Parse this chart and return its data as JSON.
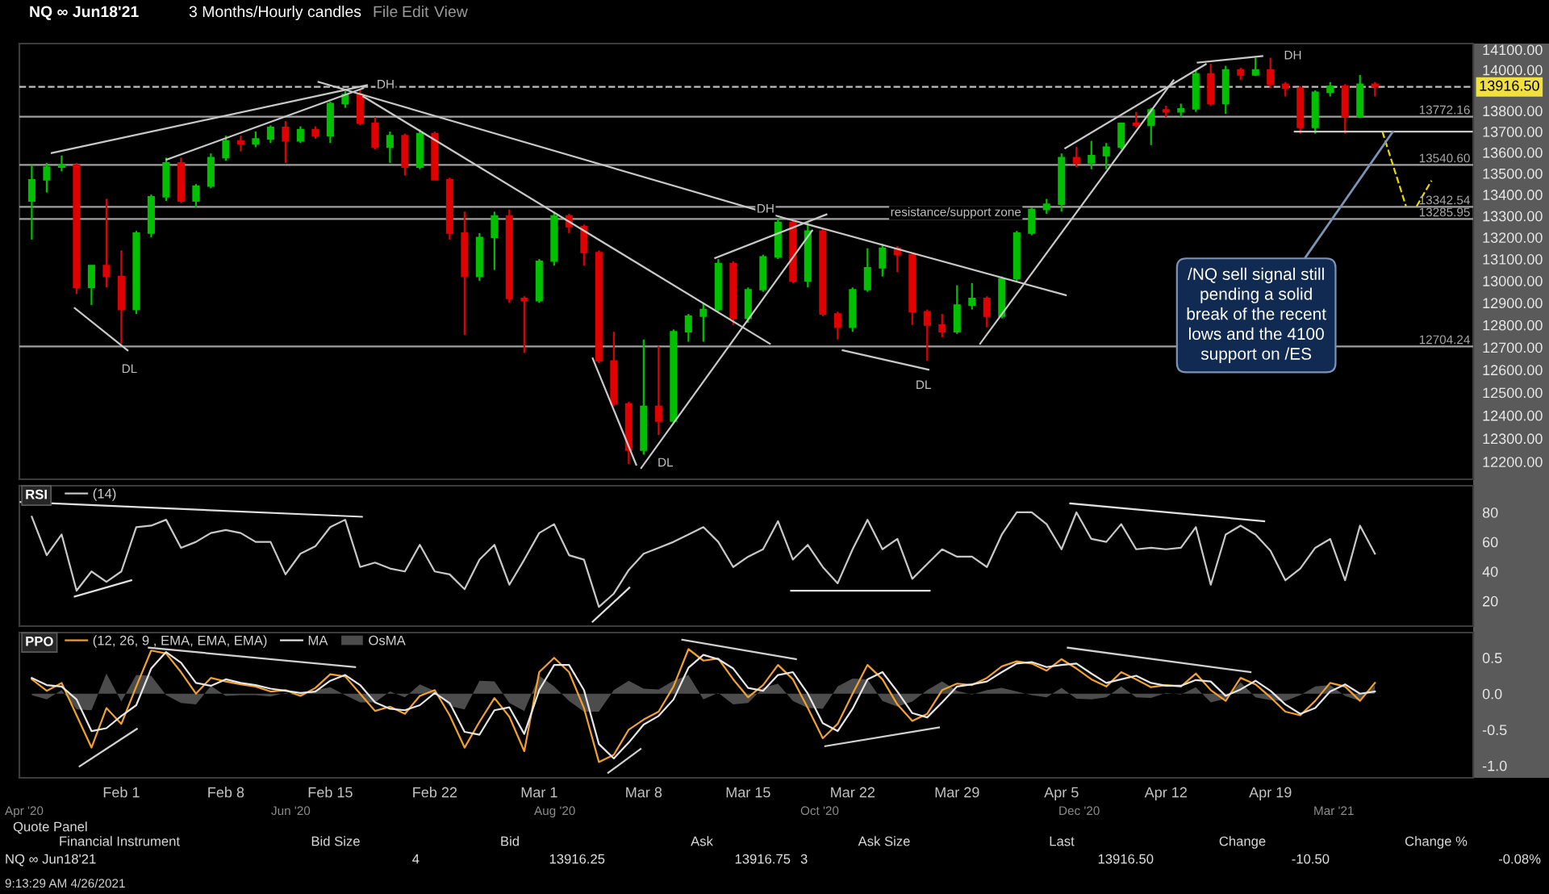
{
  "chart_data": [
    {
      "type": "candlestick",
      "title": "NQ ∞ Jun18'21",
      "subtitle": "3 Months/Hourly candles",
      "x": [
        "2021-01-26",
        "2021-01-27",
        "2021-01-28",
        "2021-01-29",
        "2021-01-30",
        "2021-01-31",
        "2021-02-01",
        "2021-02-02",
        "2021-02-03",
        "2021-02-04",
        "2021-02-05",
        "2021-02-06",
        "2021-02-07",
        "2021-02-08",
        "2021-02-09",
        "2021-02-10",
        "2021-02-11",
        "2021-02-12",
        "2021-02-13",
        "2021-02-14",
        "2021-02-15",
        "2021-02-16",
        "2021-02-17",
        "2021-02-18",
        "2021-02-19",
        "2021-02-20",
        "2021-02-21",
        "2021-02-22",
        "2021-02-23",
        "2021-02-24",
        "2021-02-25",
        "2021-02-26",
        "2021-02-27",
        "2021-02-28",
        "2021-03-01",
        "2021-03-02",
        "2021-03-03",
        "2021-03-04",
        "2021-03-05",
        "2021-03-06",
        "2021-03-07",
        "2021-03-08",
        "2021-03-09",
        "2021-03-10",
        "2021-03-11",
        "2021-03-12",
        "2021-03-13",
        "2021-03-14",
        "2021-03-15",
        "2021-03-16",
        "2021-03-17",
        "2021-03-18",
        "2021-03-19",
        "2021-03-20",
        "2021-03-21",
        "2021-03-22",
        "2021-03-23",
        "2021-03-24",
        "2021-03-25",
        "2021-03-26",
        "2021-03-27",
        "2021-03-28",
        "2021-03-29",
        "2021-03-30",
        "2021-03-31",
        "2021-04-01",
        "2021-04-02",
        "2021-04-03",
        "2021-04-04",
        "2021-04-05",
        "2021-04-06",
        "2021-04-07",
        "2021-04-08",
        "2021-04-09",
        "2021-04-10",
        "2021-04-11",
        "2021-04-12",
        "2021-04-13",
        "2021-04-14",
        "2021-04-15",
        "2021-04-16",
        "2021-04-17",
        "2021-04-18",
        "2021-04-19",
        "2021-04-20",
        "2021-04-21",
        "2021-04-22",
        "2021-04-23",
        "2021-04-24",
        "2021-04-25",
        "2021-04-26"
      ],
      "ohlc": [
        [
          13370,
          13540,
          13190,
          13470
        ],
        [
          13470,
          13550,
          13410,
          13530
        ],
        [
          13530,
          13585,
          13510,
          13540
        ],
        [
          13540,
          13550,
          12940,
          12970
        ],
        [
          12970,
          13070,
          12890,
          13070
        ],
        [
          13070,
          13380,
          12970,
          13020
        ],
        [
          13020,
          13140,
          12715,
          12870
        ],
        [
          12870,
          13230,
          12850,
          13220
        ],
        [
          13220,
          13400,
          13200,
          13390
        ],
        [
          13390,
          13575,
          13370,
          13550
        ],
        [
          13550,
          13575,
          13360,
          13370
        ],
        [
          13370,
          13450,
          13340,
          13440
        ],
        [
          13440,
          13595,
          13430,
          13575
        ],
        [
          13575,
          13680,
          13560,
          13655
        ],
        [
          13655,
          13680,
          13605,
          13640
        ],
        [
          13640,
          13700,
          13625,
          13665
        ],
        [
          13665,
          13730,
          13645,
          13720
        ],
        [
          13720,
          13750,
          13550,
          13655
        ],
        [
          13655,
          13725,
          13645,
          13710
        ],
        [
          13710,
          13725,
          13665,
          13680
        ],
        [
          13680,
          13845,
          13645,
          13835
        ],
        [
          13835,
          13895,
          13815,
          13880
        ],
        [
          13880,
          13900,
          13730,
          13740
        ],
        [
          13740,
          13770,
          13615,
          13625
        ],
        [
          13625,
          13700,
          13550,
          13680
        ],
        [
          13680,
          13690,
          13490,
          13530
        ],
        [
          13530,
          13710,
          13520,
          13690
        ],
        [
          13690,
          13700,
          13470,
          13470
        ],
        [
          13470,
          13480,
          13190,
          13220
        ],
        [
          13220,
          13320,
          12755,
          13020
        ],
        [
          13020,
          13220,
          13000,
          13200
        ],
        [
          13200,
          13320,
          13050,
          13300
        ],
        [
          13300,
          13330,
          12900,
          12920
        ],
        [
          12920,
          12930,
          12675,
          12910
        ],
        [
          12910,
          13100,
          12900,
          13090
        ],
        [
          13090,
          13320,
          13070,
          13300
        ],
        [
          13300,
          13310,
          13220,
          13250
        ],
        [
          13250,
          13260,
          13070,
          13130
        ],
        [
          13130,
          13140,
          12630,
          12640
        ],
        [
          12640,
          12770,
          12440,
          12450
        ],
        [
          12450,
          12460,
          12190,
          12250
        ],
        [
          12250,
          12735,
          12230,
          12440
        ],
        [
          12440,
          12705,
          12315,
          12375
        ],
        [
          12375,
          12780,
          12365,
          12770
        ],
        [
          12770,
          12850,
          12725,
          12840
        ],
        [
          12840,
          12900,
          12725,
          12870
        ],
        [
          12870,
          13100,
          12860,
          13080
        ],
        [
          13080,
          13090,
          12800,
          12830
        ],
        [
          12830,
          12970,
          12810,
          12960
        ],
        [
          12960,
          13120,
          12950,
          13110
        ],
        [
          13110,
          13290,
          13100,
          13270
        ],
        [
          13270,
          13280,
          12990,
          13000
        ],
        [
          13000,
          13270,
          12970,
          13230
        ],
        [
          13230,
          13240,
          12840,
          12850
        ],
        [
          12850,
          12860,
          12735,
          12790
        ],
        [
          12790,
          12970,
          12770,
          12960
        ],
        [
          12960,
          13150,
          12950,
          13060
        ],
        [
          13060,
          13170,
          13020,
          13150
        ],
        [
          13150,
          13160,
          13040,
          13120
        ],
        [
          13120,
          13130,
          12800,
          12860
        ],
        [
          12860,
          12870,
          12640,
          12800
        ],
        [
          12800,
          12850,
          12745,
          12770
        ],
        [
          12770,
          12980,
          12760,
          12890
        ],
        [
          12890,
          12990,
          12870,
          12920
        ],
        [
          12920,
          12930,
          12790,
          12840
        ],
        [
          12840,
          13020,
          12830,
          13010
        ],
        [
          13010,
          13230,
          13000,
          13220
        ],
        [
          13220,
          13340,
          13210,
          13330
        ],
        [
          13330,
          13380,
          13310,
          13355
        ],
        [
          13355,
          13595,
          13320,
          13575
        ],
        [
          13575,
          13625,
          13530,
          13550
        ],
        [
          13550,
          13655,
          13520,
          13585
        ],
        [
          13585,
          13645,
          13520,
          13625
        ],
        [
          13625,
          13740,
          13615,
          13740
        ],
        [
          13740,
          13795,
          13720,
          13730
        ],
        [
          13730,
          13815,
          13635,
          13805
        ],
        [
          13805,
          13825,
          13770,
          13795
        ],
        [
          13795,
          13835,
          13770,
          13810
        ],
        [
          13810,
          14000,
          13795,
          13980
        ],
        [
          13980,
          14030,
          13825,
          13835
        ],
        [
          13835,
          14020,
          13785,
          14000
        ],
        [
          14000,
          14010,
          13950,
          13975
        ],
        [
          13975,
          14060,
          13970,
          14000
        ],
        [
          14000,
          14060,
          13910,
          13930
        ],
        [
          13930,
          13940,
          13870,
          13910
        ],
        [
          13910,
          13920,
          13690,
          13720
        ],
        [
          13720,
          13900,
          13690,
          13890
        ],
        [
          13890,
          13940,
          13870,
          13920
        ],
        [
          13920,
          13930,
          13690,
          13770
        ],
        [
          13770,
          13975,
          13765,
          13930
        ],
        [
          13930,
          13940,
          13870,
          13916.5
        ]
      ],
      "colors": [
        "#00c000",
        "#00c000",
        "#00c000",
        "#e00000",
        "#00c000",
        "#e00000",
        "#e00000",
        "#00c000",
        "#00c000",
        "#00c000",
        "#e00000",
        "#00c000",
        "#00c000",
        "#00c000",
        "#e00000",
        "#00c000",
        "#00c000",
        "#e00000",
        "#00c000",
        "#e00000",
        "#00c000",
        "#00c000",
        "#e00000",
        "#e00000",
        "#00c000",
        "#e00000",
        "#00c000",
        "#e00000",
        "#e00000",
        "#e00000",
        "#00c000",
        "#00c000",
        "#e00000",
        "#e00000",
        "#00c000",
        "#00c000",
        "#e00000",
        "#e00000",
        "#e00000",
        "#e00000",
        "#e00000",
        "#00c000",
        "#e00000",
        "#00c000",
        "#00c000",
        "#00c000",
        "#00c000",
        "#e00000",
        "#00c000",
        "#00c000",
        "#00c000",
        "#e00000",
        "#00c000",
        "#e00000",
        "#e00000",
        "#00c000",
        "#00c000",
        "#00c000",
        "#e00000",
        "#e00000",
        "#e00000",
        "#e00000",
        "#00c000",
        "#00c000",
        "#e00000",
        "#00c000",
        "#00c000",
        "#00c000",
        "#00c000",
        "#00c000",
        "#e00000",
        "#00c000",
        "#00c000",
        "#00c000",
        "#e00000",
        "#00c000",
        "#e00000",
        "#00c000",
        "#00c000",
        "#e00000",
        "#00c000",
        "#e00000",
        "#00c000",
        "#e00000",
        "#e00000",
        "#e00000",
        "#00c000",
        "#00c000",
        "#e00000",
        "#00c000",
        "#e00000"
      ],
      "series": [
        {
          "type": "line",
          "color": "#c8c8c8",
          "x": [
            "2021-01-27T08:00",
            "2021-02-17T11:00"
          ],
          "values": [
            13597,
            13925
          ]
        },
        {
          "type": "line",
          "color": "#c8c8c8",
          "x": [
            "2021-02-04T01:00",
            "2021-02-17T05:00"
          ],
          "values": [
            13566,
            13910
          ]
        },
        {
          "type": "line",
          "color": "#c8c8c8",
          "x": [
            "2021-02-14T05:00",
            "2021-03-17T08:00",
            "2021-04-05T07:00"
          ],
          "values": [
            13941,
            13292,
            12935
          ]
        },
        {
          "type": "line",
          "color": "#c8c8c8",
          "x": [
            "2021-02-17T05:00",
            "2021-03-16T11:00"
          ],
          "values": [
            13870,
            12716
          ]
        },
        {
          "type": "line",
          "color": "#c8c8c8",
          "x": [
            "2021-03-12T19:00",
            "2021-03-20T06:00"
          ],
          "values": [
            13105,
            13307
          ]
        },
        {
          "type": "line",
          "color": "#c8c8c8",
          "x": [
            "2021-03-07T20:00",
            "2021-03-19T07:00"
          ],
          "values": [
            12173,
            13232
          ]
        },
        {
          "type": "line",
          "color": "#c8c8c8",
          "x": [
            "2021-01-28T21:00",
            "2021-02-01T10:00"
          ],
          "values": [
            12876,
            12687
          ]
        },
        {
          "type": "line",
          "color": "#c8c8c8",
          "x": [
            "2021-03-04T14:00",
            "2021-03-07T12:00"
          ],
          "values": [
            12651,
            12187
          ]
        },
        {
          "type": "line",
          "color": "#c8c8c8",
          "x": [
            "2021-03-21T08:00",
            "2021-03-27T02:00"
          ],
          "values": [
            12687,
            12601
          ]
        },
        {
          "type": "line",
          "color": "#c8c8c8",
          "x": [
            "2021-03-30T13:00",
            "2021-04-12T12:00"
          ],
          "values": [
            12716,
            13949
          ]
        },
        {
          "type": "line",
          "color": "#c8c8c8",
          "x": [
            "2021-04-05T06:00",
            "2021-04-14T16:00"
          ],
          "values": [
            13620,
            14028
          ]
        },
        {
          "type": "line",
          "color": "#c8c8c8",
          "x": [
            "2021-04-14T03:00",
            "2021-04-18T11:00"
          ],
          "values": [
            14036,
            14068
          ]
        },
        {
          "type": "line",
          "color": "#c8c8c8",
          "x": [
            "2021-04-20T15:00",
            "2021-05-02T12:00"
          ],
          "values": [
            13700,
            13700
          ]
        },
        {
          "type": "line",
          "color": "#e8d800",
          "line_style": "dashed",
          "x": [
            "2021-04-26T12:00",
            "2021-04-28T02:00"
          ],
          "values": [
            13700,
            13345
          ]
        },
        {
          "type": "line",
          "color": "#e8d800",
          "line_style": "dashed",
          "x": [
            "2021-04-28T19:00",
            "2021-04-29T19:00"
          ],
          "values": [
            13345,
            13466
          ]
        }
      ],
      "ref_lines": [
        {
          "axis": "y",
          "value": 13916.5,
          "label": "13916.50",
          "color": "#bebebe",
          "line_style": "dashed"
        },
        {
          "axis": "y",
          "value": 13772.16,
          "label": "13772.16",
          "color": "#a0a0a0"
        },
        {
          "axis": "y",
          "value": 13540.6,
          "label": "13540.60",
          "color": "#a0a0a0"
        },
        {
          "axis": "y",
          "value": 13342.54,
          "label": "13342.54",
          "color": "#a0a0a0"
        },
        {
          "axis": "y",
          "value": 13285.95,
          "label": "13285.95",
          "color": "#a0a0a0"
        },
        {
          "axis": "y",
          "value": 12704.24,
          "label": "12704.24",
          "color": "#a0a0a0"
        }
      ],
      "annotations": [
        {
          "text": "DH",
          "x": "2021-02-18T17:00",
          "y": 13925
        },
        {
          "text": "DH",
          "x": "2021-03-16T04:00",
          "y": 13330
        },
        {
          "text": "DH",
          "x": "2021-04-20T12:00",
          "y": 14068
        },
        {
          "text": "DL",
          "x": "2021-02-01T13:00",
          "y": 12601
        },
        {
          "text": "DL",
          "x": "2021-03-09T11:00",
          "y": 12193
        },
        {
          "text": "DL",
          "x": "2021-03-26T18:00",
          "y": 12530
        },
        {
          "text": "resistance/support zone",
          "x": "2021-03-28T22:00",
          "y": 13314
        },
        {
          "text": "/NQ sell signal still\npending a solid\nbreak of the recent\nlows and the 4100\nsupport on /ES",
          "x": "2021-04-27T05:00",
          "y": 13700
        }
      ],
      "log": true,
      "xlim": [
        "2021-01-25T04:00",
        "2021-05-02T14:00"
      ],
      "ylim": [
        12125,
        14130
      ],
      "yticks": [
        {
          "value": 12200,
          "label": "12200.00"
        },
        {
          "value": 12300,
          "label": "12300.00"
        },
        {
          "value": 12400,
          "label": "12400.00"
        },
        {
          "value": 12500,
          "label": "12500.00"
        },
        {
          "value": 12600,
          "label": "12600.00"
        },
        {
          "value": 12700,
          "label": "12700.00"
        },
        {
          "value": 12800,
          "label": "12800.00"
        },
        {
          "value": 12900,
          "label": "12900.00"
        },
        {
          "value": 13000,
          "label": "13000.00"
        },
        {
          "value": 13100,
          "label": "13100.00"
        },
        {
          "value": 13200,
          "label": "13200.00"
        },
        {
          "value": 13300,
          "label": "13300.00"
        },
        {
          "value": 13400,
          "label": "13400.00"
        },
        {
          "value": 13500,
          "label": "13500.00"
        },
        {
          "value": 13600,
          "label": "13600.00"
        },
        {
          "value": 13700,
          "label": "13700.00"
        },
        {
          "value": 13800,
          "label": "13800.00"
        },
        {
          "value": 14000,
          "label": "14000.00"
        },
        {
          "value": 14100,
          "label": "14100.00"
        }
      ],
      "tick_labels": "y"
    },
    {
      "type": "line",
      "title": "RSI",
      "x": [
        "2021-01-26",
        "2021-01-27",
        "2021-01-28",
        "2021-01-29",
        "2021-01-30",
        "2021-01-31",
        "2021-02-01",
        "2021-02-02",
        "2021-02-03",
        "2021-02-04",
        "2021-02-05",
        "2021-02-06",
        "2021-02-07",
        "2021-02-08",
        "2021-02-09",
        "2021-02-10",
        "2021-02-11",
        "2021-02-12",
        "2021-02-13",
        "2021-02-14",
        "2021-02-15",
        "2021-02-16",
        "2021-02-17",
        "2021-02-18",
        "2021-02-19",
        "2021-02-20",
        "2021-02-21",
        "2021-02-22",
        "2021-02-23",
        "2021-02-24",
        "2021-02-25",
        "2021-02-26",
        "2021-02-27",
        "2021-02-28",
        "2021-03-01",
        "2021-03-02",
        "2021-03-03",
        "2021-03-04",
        "2021-03-05",
        "2021-03-06",
        "2021-03-07",
        "2021-03-08",
        "2021-03-09",
        "2021-03-10",
        "2021-03-11",
        "2021-03-12",
        "2021-03-13",
        "2021-03-14",
        "2021-03-15",
        "2021-03-16",
        "2021-03-17",
        "2021-03-18",
        "2021-03-19",
        "2021-03-20",
        "2021-03-21",
        "2021-03-22",
        "2021-03-23",
        "2021-03-24",
        "2021-03-25",
        "2021-03-26",
        "2021-03-27",
        "2021-03-28",
        "2021-03-29",
        "2021-03-30",
        "2021-03-31",
        "2021-04-01",
        "2021-04-02",
        "2021-04-03",
        "2021-04-04",
        "2021-04-05",
        "2021-04-06",
        "2021-04-07",
        "2021-04-08",
        "2021-04-09",
        "2021-04-10",
        "2021-04-11",
        "2021-04-12",
        "2021-04-13",
        "2021-04-14",
        "2021-04-15",
        "2021-04-16",
        "2021-04-17",
        "2021-04-18",
        "2021-04-19",
        "2021-04-20",
        "2021-04-21",
        "2021-04-22",
        "2021-04-23",
        "2021-04-24",
        "2021-04-25",
        "2021-04-26"
      ],
      "series": [
        {
          "name": "(14)",
          "color": "#c8c8c8",
          "values": [
            77,
            51,
            65,
            27,
            40,
            33,
            40,
            70,
            71,
            75,
            56,
            60,
            66,
            68,
            66,
            60,
            60,
            38,
            52,
            57,
            70,
            75,
            43,
            46,
            42,
            40,
            58,
            40,
            38,
            28,
            48,
            58,
            31,
            48,
            66,
            72,
            51,
            48,
            16,
            25,
            41,
            52,
            56,
            60,
            65,
            70,
            60,
            43,
            50,
            55,
            74,
            48,
            58,
            43,
            32,
            55,
            75,
            55,
            62,
            35,
            45,
            55,
            50,
            50,
            43,
            65,
            80,
            80,
            72,
            55,
            80,
            62,
            60,
            72,
            55,
            56,
            55,
            56,
            70,
            31,
            65,
            71,
            65,
            54,
            34,
            42,
            56,
            62,
            34,
            71,
            52
          ]
        },
        {
          "color": "#e0e0e0",
          "x": [
            "2021-01-25T06:00",
            "2021-02-17T03:00"
          ],
          "values": [
            87,
            77
          ]
        },
        {
          "color": "#e0e0e0",
          "x": [
            "2021-01-28T21:00",
            "2021-02-01T16:00"
          ],
          "values": [
            23,
            34
          ]
        },
        {
          "color": "#e0e0e0",
          "x": [
            "2021-03-04T14:00",
            "2021-03-07T01:00"
          ],
          "values": [
            6,
            29
          ]
        },
        {
          "color": "#e0e0e0",
          "x": [
            "2021-03-17T21:00",
            "2021-03-27T04:00"
          ],
          "values": [
            27,
            27
          ]
        },
        {
          "color": "#e0e0e0",
          "x": [
            "2021-04-05T14:00",
            "2021-04-18T14:00"
          ],
          "values": [
            86,
            74
          ]
        }
      ],
      "xlim": [
        "2021-01-25T04:00",
        "2021-05-02T14:00"
      ],
      "ylim": [
        3,
        98
      ],
      "yticks": [
        20,
        40,
        60,
        80
      ],
      "tick_labels": "y",
      "legend": "top left"
    },
    {
      "type": "line",
      "title": "PPO",
      "x": [
        "2021-01-26",
        "2021-01-27",
        "2021-01-28",
        "2021-01-29",
        "2021-01-30",
        "2021-01-31",
        "2021-02-01",
        "2021-02-02",
        "2021-02-03",
        "2021-02-04",
        "2021-02-05",
        "2021-02-06",
        "2021-02-07",
        "2021-02-08",
        "2021-02-09",
        "2021-02-10",
        "2021-02-11",
        "2021-02-12",
        "2021-02-13",
        "2021-02-14",
        "2021-02-15",
        "2021-02-16",
        "2021-02-17",
        "2021-02-18",
        "2021-02-19",
        "2021-02-20",
        "2021-02-21",
        "2021-02-22",
        "2021-02-23",
        "2021-02-24",
        "2021-02-25",
        "2021-02-26",
        "2021-02-27",
        "2021-02-28",
        "2021-03-01",
        "2021-03-02",
        "2021-03-03",
        "2021-03-04",
        "2021-03-05",
        "2021-03-06",
        "2021-03-07",
        "2021-03-08",
        "2021-03-09",
        "2021-03-10",
        "2021-03-11",
        "2021-03-12",
        "2021-03-13",
        "2021-03-14",
        "2021-03-15",
        "2021-03-16",
        "2021-03-17",
        "2021-03-18",
        "2021-03-19",
        "2021-03-20",
        "2021-03-21",
        "2021-03-22",
        "2021-03-23",
        "2021-03-24",
        "2021-03-25",
        "2021-03-26",
        "2021-03-27",
        "2021-03-28",
        "2021-03-29",
        "2021-03-30",
        "2021-03-31",
        "2021-04-01",
        "2021-04-02",
        "2021-04-03",
        "2021-04-04",
        "2021-04-05",
        "2021-04-06",
        "2021-04-07",
        "2021-04-08",
        "2021-04-09",
        "2021-04-10",
        "2021-04-11",
        "2021-04-12",
        "2021-04-13",
        "2021-04-14",
        "2021-04-15",
        "2021-04-16",
        "2021-04-17",
        "2021-04-18",
        "2021-04-19",
        "2021-04-20",
        "2021-04-21",
        "2021-04-22",
        "2021-04-23",
        "2021-04-24",
        "2021-04-25",
        "2021-04-26"
      ],
      "series": [
        {
          "name": "(12, 26, 9 , EMA, EMA, EMA)",
          "color": "#f0a030",
          "values": [
            0.2,
            0.04,
            0.15,
            -0.3,
            -0.75,
            -0.2,
            -0.42,
            0.1,
            0.6,
            0.56,
            0.3,
            0.0,
            0.22,
            0.17,
            0.13,
            0.1,
            0.03,
            0.05,
            -0.03,
            0.08,
            0.27,
            0.24,
            0.0,
            -0.24,
            -0.18,
            -0.28,
            -0.03,
            0.05,
            -0.3,
            -0.75,
            -0.39,
            -0.06,
            -0.32,
            -0.8,
            0.3,
            0.5,
            0.3,
            -0.2,
            -0.95,
            -0.85,
            -0.5,
            -0.36,
            -0.25,
            0.1,
            0.62,
            0.46,
            0.49,
            0.2,
            -0.05,
            0.12,
            0.4,
            0.2,
            -0.2,
            -0.62,
            -0.42,
            0.0,
            0.4,
            0.2,
            -0.15,
            -0.38,
            -0.28,
            0.05,
            0.14,
            0.12,
            0.22,
            0.38,
            0.45,
            0.42,
            0.32,
            0.48,
            0.35,
            0.2,
            0.1,
            0.3,
            0.2,
            0.09,
            0.12,
            0.1,
            0.28,
            0.05,
            -0.1,
            0.22,
            0.13,
            -0.05,
            -0.25,
            -0.3,
            -0.1,
            0.15,
            0.1,
            -0.1,
            0.15
          ]
        },
        {
          "name": "MA",
          "color": "#e6e6e6",
          "values": [
            0.22,
            0.12,
            0.1,
            -0.08,
            -0.52,
            -0.48,
            -0.31,
            -0.16,
            0.35,
            0.58,
            0.43,
            0.15,
            0.11,
            0.2,
            0.15,
            0.12,
            0.07,
            0.04,
            0.01,
            0.03,
            0.18,
            0.26,
            0.12,
            -0.12,
            -0.21,
            -0.23,
            -0.16,
            0.01,
            -0.13,
            -0.53,
            -0.57,
            -0.23,
            -0.19,
            -0.56,
            0.05,
            0.4,
            0.4,
            0.05,
            -0.7,
            -0.9,
            -0.68,
            -0.43,
            -0.31,
            -0.08,
            0.36,
            0.54,
            0.48,
            0.35,
            0.08,
            0.04,
            0.26,
            0.3,
            0.0,
            -0.41,
            -0.52,
            -0.21,
            0.2,
            0.3,
            0.03,
            -0.27,
            -0.33,
            -0.12,
            0.1,
            0.13,
            0.17,
            0.3,
            0.42,
            0.44,
            0.37,
            0.4,
            0.42,
            0.28,
            0.15,
            0.2,
            0.25,
            0.15,
            0.11,
            0.11,
            0.19,
            0.17,
            -0.03,
            0.06,
            0.18,
            0.04,
            -0.15,
            -0.28,
            -0.2,
            0.03,
            0.13,
            0.0,
            0.03
          ]
        },
        {
          "name": "OsMA",
          "type": "area",
          "color": "#4c4c4c",
          "values": [
            -0.02,
            -0.08,
            0.05,
            -0.22,
            -0.23,
            0.28,
            -0.11,
            0.26,
            0.25,
            -0.02,
            -0.13,
            -0.15,
            0.11,
            -0.03,
            -0.02,
            -0.02,
            -0.04,
            0.01,
            -0.04,
            0.05,
            0.09,
            -0.02,
            -0.12,
            -0.12,
            0.03,
            -0.05,
            0.13,
            0.04,
            -0.17,
            -0.22,
            0.18,
            0.17,
            -0.13,
            -0.24,
            0.25,
            0.1,
            -0.1,
            -0.25,
            -0.25,
            0.05,
            0.18,
            0.07,
            0.06,
            0.18,
            0.26,
            -0.08,
            0.01,
            -0.15,
            -0.13,
            0.08,
            0.14,
            -0.1,
            -0.2,
            -0.21,
            0.1,
            0.21,
            0.2,
            -0.1,
            -0.18,
            -0.11,
            0.05,
            0.17,
            0.04,
            -0.01,
            0.05,
            0.08,
            0.03,
            -0.02,
            -0.05,
            0.08,
            -0.07,
            -0.08,
            -0.05,
            0.1,
            -0.05,
            -0.06,
            0.01,
            -0.01,
            0.09,
            -0.12,
            -0.07,
            0.16,
            -0.05,
            -0.09,
            -0.1,
            -0.02,
            0.1,
            0.12,
            -0.03,
            -0.1,
            0.12
          ]
        },
        {
          "color": "#d0d0d0",
          "x": [
            "2021-01-29T05:00",
            "2021-02-02T01:00"
          ],
          "values": [
            -1.01,
            -0.49
          ]
        },
        {
          "color": "#d0d0d0",
          "x": [
            "2021-02-02T20:00",
            "2021-02-16T16:00"
          ],
          "values": [
            0.64,
            0.37
          ]
        },
        {
          "color": "#d0d0d0",
          "x": [
            "2021-03-05T15:00",
            "2021-03-07T19:00"
          ],
          "values": [
            -1.1,
            -0.77
          ]
        },
        {
          "color": "#d0d0d0",
          "x": [
            "2021-03-10T14:00",
            "2021-03-18T05:00"
          ],
          "values": [
            0.75,
            0.48
          ]
        },
        {
          "color": "#d0d0d0",
          "x": [
            "2021-03-20T04:00",
            "2021-03-27T19:00"
          ],
          "values": [
            -0.73,
            -0.47
          ]
        },
        {
          "color": "#d0d0d0",
          "x": [
            "2021-04-05T10:00",
            "2021-04-17T16:00"
          ],
          "values": [
            0.64,
            0.3
          ]
        }
      ],
      "xlim": [
        "2021-01-25T04:00",
        "2021-05-02T14:00"
      ],
      "xticks": [
        {
          "value": "2021-02-01",
          "label": "Feb 1"
        },
        {
          "value": "2021-02-08",
          "label": "Feb 8"
        },
        {
          "value": "2021-02-15",
          "label": "Feb 15"
        },
        {
          "value": "2021-02-22",
          "label": "Feb 22"
        },
        {
          "value": "2021-03-01",
          "label": "Mar 1"
        },
        {
          "value": "2021-03-08",
          "label": "Mar 8"
        },
        {
          "value": "2021-03-15",
          "label": "Mar 15"
        },
        {
          "value": "2021-03-22",
          "label": "Mar 22"
        },
        {
          "value": "2021-03-29",
          "label": "Mar 29"
        },
        {
          "value": "2021-04-05",
          "label": "Apr 5"
        },
        {
          "value": "2021-04-12",
          "label": "Apr 12"
        },
        {
          "value": "2021-04-19",
          "label": "Apr 19"
        }
      ],
      "ylim": [
        -1.17,
        0.85
      ],
      "yticks": [
        0.5,
        {
          "value": 0,
          "label": "0.0"
        },
        -0.5,
        {
          "value": -1,
          "label": "-1.0"
        }
      ],
      "legend": "top left"
    },
    {
      "type": "other",
      "title": "Quote Panel",
      "annotations": [
        "File",
        "Edit",
        "View",
        "Apr '20",
        "Jun '20",
        "Aug '20",
        "Oct '20",
        "Dec '20",
        "Mar '21",
        "Financial Instrument",
        "Bid Size",
        "Bid",
        "Ask",
        "Ask Size",
        "Last",
        "Change",
        "Change %",
        "NQ ∞ Jun18'21",
        "4",
        "13916.25",
        "13916.75",
        "3",
        "13916.50",
        "-10.50",
        "-0.08%",
        "9:13:29 AM 4/26/2021"
      ]
    }
  ]
}
